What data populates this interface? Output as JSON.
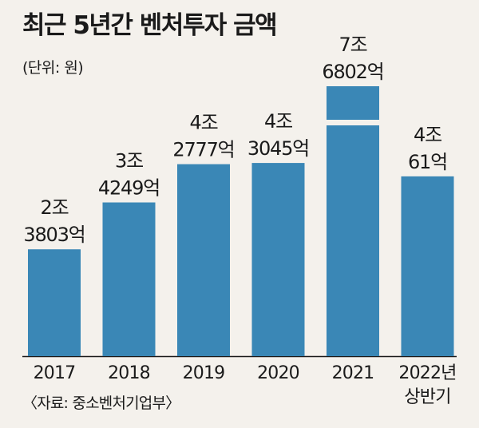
{
  "chart_data": {
    "type": "bar",
    "title": "최근 5년간 벤처투자 금액",
    "unit_note": "(단위: 원)",
    "source": "〈자료: 중소벤처기업부〉",
    "xlabel": "",
    "ylabel": "",
    "categories": [
      [
        "2017"
      ],
      [
        "2018"
      ],
      [
        "2019"
      ],
      [
        "2020"
      ],
      [
        "2021"
      ],
      [
        "2022년",
        "상반기"
      ]
    ],
    "values": [
      23803,
      34249,
      42777,
      43045,
      76802,
      40061
    ],
    "value_unit": "억원",
    "data_labels": [
      [
        "2조",
        "3803억"
      ],
      [
        "3조",
        "4249억"
      ],
      [
        "4조",
        "2777억"
      ],
      [
        "4조",
        "3045억"
      ],
      [
        "7조",
        "6802억"
      ],
      [
        "4조",
        "61억"
      ]
    ],
    "broken_axis_bar_index": 4,
    "bar_color": "#3a87b6",
    "background_color": "#f4f1ec",
    "grid": false,
    "legend": "none"
  }
}
